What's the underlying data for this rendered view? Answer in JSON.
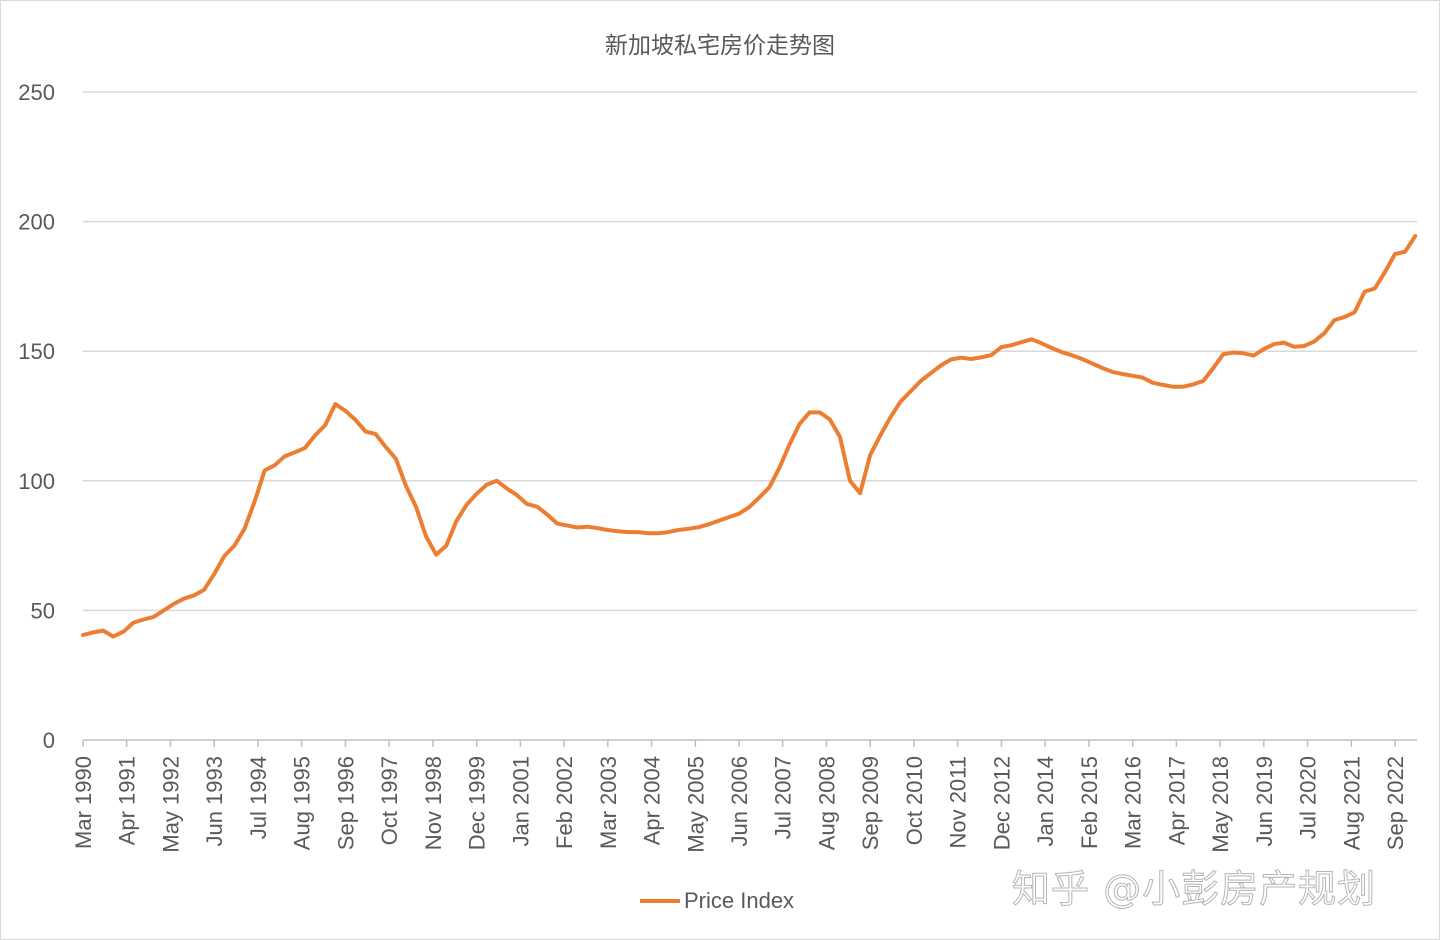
{
  "chart_data": {
    "type": "line",
    "title": "新加坡私宅房价走势图",
    "xlabel": "",
    "ylabel": "",
    "ylim": [
      0,
      250
    ],
    "y_ticks": [
      "0",
      "50",
      "100",
      "150",
      "200",
      "250"
    ],
    "x_tick_labels": [
      "Mar 1990",
      "Apr 1991",
      "May 1992",
      "Jun 1993",
      "Jul 1994",
      "Aug 1995",
      "Sep 1996",
      "Oct 1997",
      "Nov 1998",
      "Dec 1999",
      "Jan 2001",
      "Feb 2002",
      "Mar 2003",
      "Apr 2004",
      "May 2005",
      "Jun 2006",
      "Jul 2007",
      "Aug 2008",
      "Sep 2009",
      "Oct 2010",
      "Nov 2011",
      "Dec 2012",
      "Jan 2014",
      "Feb 2015",
      "Mar 2016",
      "Apr 2017",
      "May 2018",
      "Jun 2019",
      "Jul 2020",
      "Aug 2021",
      "Sep 2022"
    ],
    "x_tick_labels_format": "rotated vertical",
    "grid": "horizontal",
    "legend": "bottom",
    "series": [
      {
        "name": "Price Index",
        "color": "#ED7D31",
        "x": [
          "1990-03",
          "1990-06",
          "1990-09",
          "1990-12",
          "1991-03",
          "1991-06",
          "1991-09",
          "1991-12",
          "1992-03",
          "1992-06",
          "1992-09",
          "1992-12",
          "1993-03",
          "1993-06",
          "1993-09",
          "1993-12",
          "1994-03",
          "1994-06",
          "1994-09",
          "1994-12",
          "1995-03",
          "1995-06",
          "1995-09",
          "1995-12",
          "1996-03",
          "1996-06",
          "1996-09",
          "1996-12",
          "1997-03",
          "1997-06",
          "1997-09",
          "1997-12",
          "1998-03",
          "1998-06",
          "1998-09",
          "1998-12",
          "1999-03",
          "1999-06",
          "1999-09",
          "1999-12",
          "2000-03",
          "2000-06",
          "2000-09",
          "2000-12",
          "2001-03",
          "2001-06",
          "2001-09",
          "2001-12",
          "2002-03",
          "2002-06",
          "2002-09",
          "2002-12",
          "2003-03",
          "2003-06",
          "2003-09",
          "2003-12",
          "2004-03",
          "2004-06",
          "2004-09",
          "2004-12",
          "2005-03",
          "2005-06",
          "2005-09",
          "2005-12",
          "2006-03",
          "2006-06",
          "2006-09",
          "2006-12",
          "2007-03",
          "2007-06",
          "2007-09",
          "2007-12",
          "2008-03",
          "2008-06",
          "2008-09",
          "2008-12",
          "2009-03",
          "2009-06",
          "2009-09",
          "2009-12",
          "2010-03",
          "2010-06",
          "2010-09",
          "2010-12",
          "2011-03",
          "2011-06",
          "2011-09",
          "2011-12",
          "2012-03",
          "2012-06",
          "2012-09",
          "2012-12",
          "2013-03",
          "2013-06",
          "2013-09",
          "2013-12",
          "2014-03",
          "2014-06",
          "2014-09",
          "2014-12",
          "2015-03",
          "2015-06",
          "2015-09",
          "2015-12",
          "2016-03",
          "2016-06",
          "2016-09",
          "2016-12",
          "2017-03",
          "2017-06",
          "2017-09",
          "2017-12",
          "2018-03",
          "2018-06",
          "2018-09",
          "2018-12",
          "2019-03",
          "2019-06",
          "2019-09",
          "2019-12",
          "2020-03",
          "2020-06",
          "2020-09",
          "2020-12",
          "2021-03",
          "2021-06",
          "2021-09",
          "2021-12",
          "2022-03",
          "2022-06",
          "2022-09",
          "2022-12",
          "2023-03"
        ],
        "values": [
          40.5,
          41.5,
          42.2,
          39.9,
          41.8,
          45.3,
          46.5,
          47.5,
          50,
          52.5,
          54.5,
          55.8,
          58,
          64,
          71,
          75,
          81.5,
          92,
          104,
          106,
          109.5,
          111,
          112.7,
          117.5,
          121.5,
          129.6,
          127,
          123.5,
          119,
          118,
          113,
          108.5,
          98,
          90,
          78.5,
          71.5,
          75,
          84.5,
          90.7,
          95,
          98.5,
          100,
          97,
          94.5,
          91,
          90,
          87,
          83.5,
          82.7,
          82,
          82.3,
          81.7,
          81,
          80.5,
          80.2,
          80.2,
          79.8,
          79.8,
          80.2,
          81,
          81.5,
          82.1,
          83.2,
          84.6,
          86,
          87.3,
          89.8,
          93.5,
          97.5,
          105,
          114,
          122,
          126.4,
          126.4,
          123.7,
          117,
          100,
          95.2,
          110,
          117.5,
          124.5,
          130.5,
          134.5,
          138.5,
          141.5,
          144.5,
          146.8,
          147.5,
          147,
          147.6,
          148.5,
          151.6,
          152.3,
          153.5,
          154.6,
          153,
          151.2,
          149.6,
          148.4,
          147,
          145.3,
          143.5,
          142,
          141.2,
          140.5,
          139.8,
          137.8,
          137,
          136.3,
          136.3,
          137.2,
          138.5,
          143.5,
          148.9,
          149.5,
          149.2,
          148.3,
          150.8,
          152.7,
          153.3,
          151.7,
          152,
          153.8,
          157,
          162,
          163.2,
          165,
          173,
          174.2,
          180.5,
          187.5,
          188.4,
          194.4
        ]
      }
    ]
  },
  "watermark": "知乎 @小彭房产规划"
}
